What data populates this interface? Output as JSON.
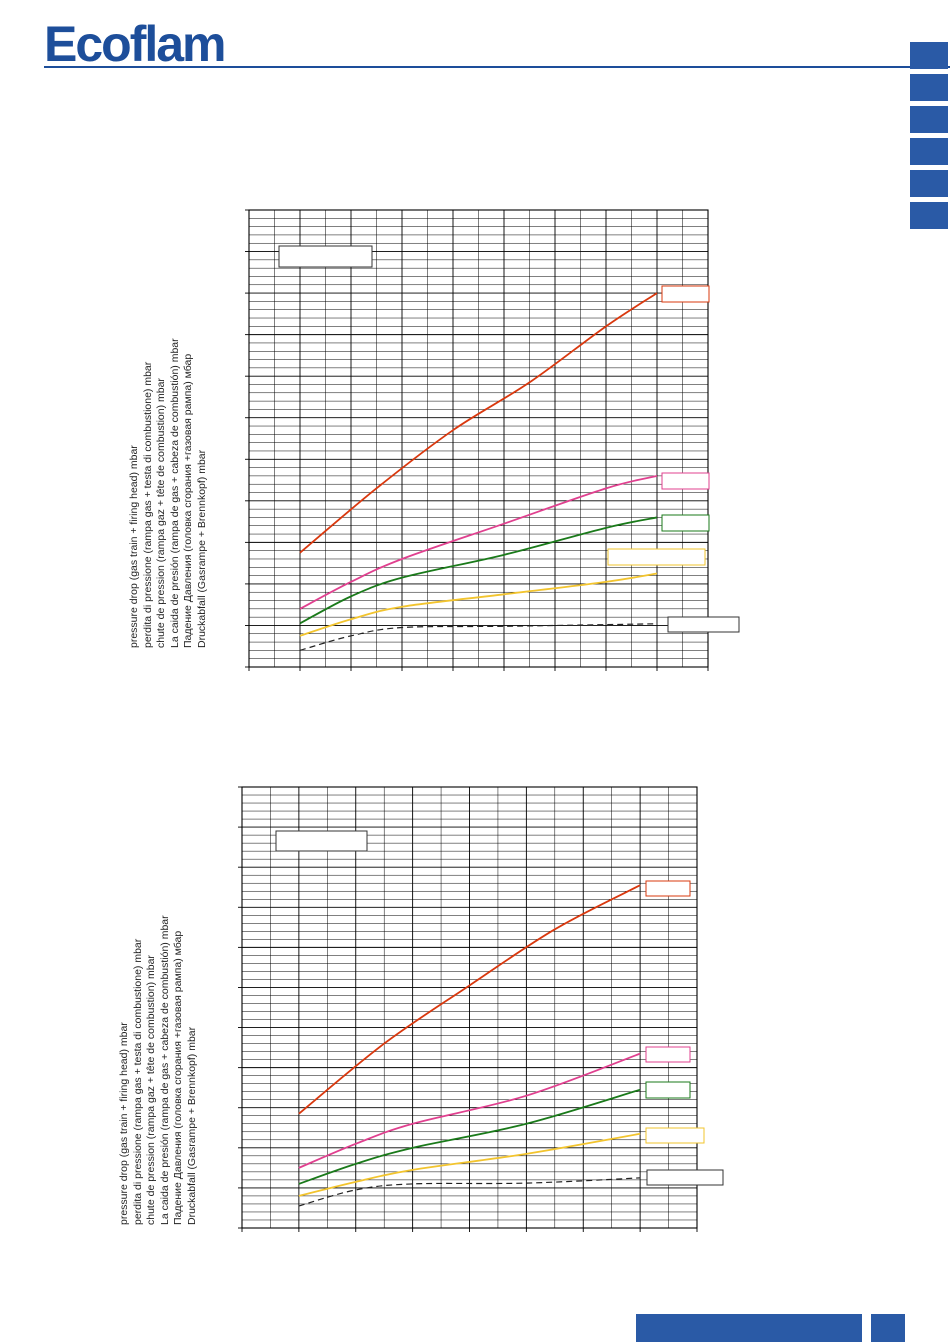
{
  "brand": {
    "logo_text": "Ecoflam",
    "color": "#1d4e9a",
    "rule_color": "#1d4e9a"
  },
  "side_tabs": {
    "count": 6,
    "color": "#2a5aa6"
  },
  "footer": {
    "color": "#2a5aa6"
  },
  "chart_data": [
    {
      "type": "line",
      "title": "",
      "xlabel": "",
      "ylabel_lines": [
        "pressure drop (gas train + firing head) mbar",
        "perdita di pressione (rampa gas + testa di combustione) mbar",
        "chute de pression (rampa gaz + tête de combustion) mbar",
        "La caida de presión (rampa de gas + cabeza de combustión) mbar",
        "Падение Давления  (головка сгорания +газовая рампа) мбар",
        "Druckabfall (Gasrampe + Brennkopf) mbar"
      ],
      "xlim": [
        0,
        9
      ],
      "ylim": [
        0,
        11
      ],
      "grid": true,
      "x_divisions": 9,
      "y_divisions": 55,
      "series": [
        {
          "color": "#d9380e",
          "dashed": false,
          "x": [
            1,
            2.5,
            4,
            5.5,
            7,
            8
          ],
          "y": [
            2.75,
            4.3,
            5.7,
            6.85,
            8.2,
            9.0
          ]
        },
        {
          "color": "#e0408f",
          "dashed": false,
          "x": [
            1,
            2,
            3,
            5,
            7,
            8
          ],
          "y": [
            1.4,
            2.05,
            2.6,
            3.45,
            4.3,
            4.6
          ]
        },
        {
          "color": "#1a7a1a",
          "dashed": false,
          "x": [
            1,
            2,
            3,
            5,
            7,
            8
          ],
          "y": [
            1.05,
            1.7,
            2.15,
            2.7,
            3.35,
            3.6
          ]
        },
        {
          "color": "#f2c42e",
          "dashed": false,
          "x": [
            1,
            2,
            3,
            5,
            7,
            8
          ],
          "y": [
            0.75,
            1.15,
            1.45,
            1.75,
            2.05,
            2.25
          ]
        },
        {
          "color": "#222222",
          "dashed": true,
          "x": [
            1,
            2,
            3,
            5,
            7,
            8
          ],
          "y": [
            0.4,
            0.75,
            0.95,
            0.98,
            1.02,
            1.04
          ]
        }
      ],
      "legend_boxes": [
        "",
        "",
        "",
        "",
        "",
        ""
      ]
    },
    {
      "type": "line",
      "title": "",
      "xlabel": "",
      "ylabel_lines": [
        "pressure drop (gas train + firing head) mbar",
        "perdita di pressione (rampa gas + testa di combustione) mbar",
        "chute de pression (rampa gaz + tête de combustion) mbar",
        "La caida de presión (rampa de gas + cabeza de combustión) mbar",
        "Падение Давления  (головка сгорания +газовая рампа) мбар",
        "Druckabfall (Gasrampe + Brennkopf) mbar"
      ],
      "xlim": [
        0,
        8
      ],
      "ylim": [
        0,
        11
      ],
      "grid": true,
      "x_divisions": 8,
      "y_divisions": 55,
      "series": [
        {
          "color": "#d9380e",
          "dashed": false,
          "x": [
            1,
            2.5,
            4,
            5.5,
            7
          ],
          "y": [
            2.85,
            4.6,
            6.05,
            7.45,
            8.55
          ]
        },
        {
          "color": "#e0408f",
          "dashed": false,
          "x": [
            1,
            2,
            3,
            5,
            7
          ],
          "y": [
            1.5,
            2.1,
            2.6,
            3.3,
            4.35
          ]
        },
        {
          "color": "#1a7a1a",
          "dashed": false,
          "x": [
            1,
            2,
            3,
            5,
            7
          ],
          "y": [
            1.1,
            1.6,
            2.0,
            2.6,
            3.45
          ]
        },
        {
          "color": "#f2c42e",
          "dashed": false,
          "x": [
            1,
            2,
            3,
            5,
            7
          ],
          "y": [
            0.8,
            1.15,
            1.45,
            1.85,
            2.35
          ]
        },
        {
          "color": "#222222",
          "dashed": true,
          "x": [
            1,
            2,
            3,
            5,
            7
          ],
          "y": [
            0.55,
            0.95,
            1.1,
            1.12,
            1.25
          ]
        }
      ],
      "legend_boxes": [
        "",
        "",
        "",
        "",
        "",
        ""
      ]
    }
  ]
}
